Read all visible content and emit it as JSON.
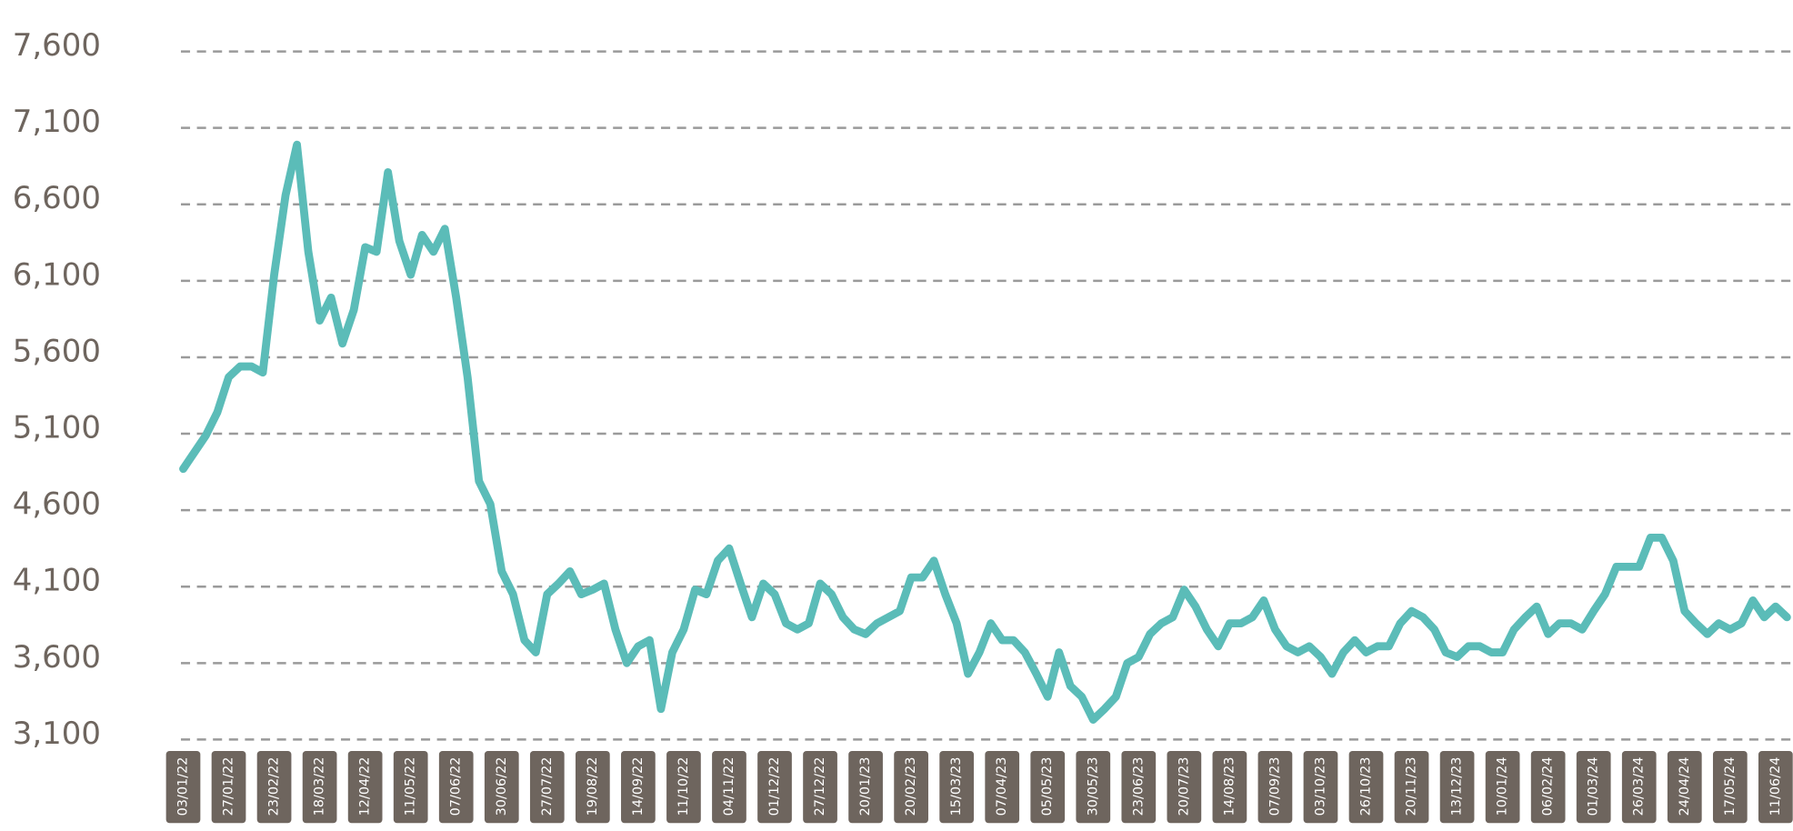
{
  "chart_data": {
    "type": "line",
    "categories": [
      "03/01/22",
      null,
      null,
      null,
      "27/01/22",
      null,
      null,
      null,
      "23/02/22",
      null,
      null,
      null,
      "18/03/22",
      null,
      null,
      null,
      "12/04/22",
      null,
      null,
      null,
      "11/05/22",
      null,
      null,
      null,
      "07/06/22",
      null,
      null,
      null,
      "30/06/22",
      null,
      null,
      null,
      "27/07/22",
      null,
      null,
      null,
      "19/08/22",
      null,
      null,
      null,
      "14/09/22",
      null,
      null,
      null,
      "11/10/22",
      null,
      null,
      null,
      "04/11/22",
      null,
      null,
      null,
      "01/12/22",
      null,
      null,
      null,
      "27/12/22",
      null,
      null,
      null,
      "20/01/23",
      null,
      null,
      null,
      "20/02/23",
      null,
      null,
      null,
      "15/03/23",
      null,
      null,
      null,
      "07/04/23",
      null,
      null,
      null,
      "05/05/23",
      null,
      null,
      null,
      "30/05/23",
      null,
      null,
      null,
      "23/06/23",
      null,
      null,
      null,
      "20/07/23",
      null,
      null,
      null,
      "14/08/23",
      null,
      null,
      null,
      "07/09/23",
      null,
      null,
      null,
      "03/10/23",
      null,
      null,
      null,
      "26/10/23",
      null,
      null,
      null,
      "20/11/23",
      null,
      null,
      null,
      "13/12/23",
      null,
      null,
      null,
      "10/01/24",
      null,
      null,
      null,
      "06/02/24",
      null,
      null,
      null,
      "01/03/24",
      null,
      null,
      null,
      "26/03/24",
      null,
      null,
      null,
      "24/04/24",
      null,
      null,
      null,
      "17/05/24",
      null,
      null,
      null,
      "11/06/24",
      null
    ],
    "series": [
      {
        "color": "#5bbcb8",
        "values": [
          4870,
          4980,
          5090,
          5240,
          5470,
          5540,
          5540,
          5500,
          6140,
          6660,
          6990,
          6290,
          5840,
          5990,
          5690,
          5910,
          6320,
          6290,
          6810,
          6360,
          6140,
          6400,
          6290,
          6440,
          5990,
          5470,
          4790,
          4640,
          4200,
          4050,
          3750,
          3670,
          4050,
          4120,
          4200,
          4050,
          4080,
          4120,
          3820,
          3600,
          3710,
          3750,
          3300,
          3670,
          3820,
          4080,
          4050,
          4270,
          4350,
          4120,
          3900,
          4120,
          4050,
          3860,
          3820,
          3860,
          4120,
          4050,
          3900,
          3820,
          3790,
          3860,
          3900,
          3940,
          4160,
          4160,
          4270,
          4050,
          3860,
          3530,
          3670,
          3860,
          3750,
          3750,
          3670,
          3530,
          3380,
          3670,
          3450,
          3380,
          3230,
          3300,
          3380,
          3600,
          3640,
          3790,
          3860,
          3900,
          4080,
          3970,
          3820,
          3710,
          3860,
          3860,
          3900,
          4010,
          3820,
          3710,
          3670,
          3710,
          3640,
          3530,
          3670,
          3750,
          3670,
          3710,
          3710,
          3860,
          3940,
          3900,
          3820,
          3670,
          3640,
          3710,
          3710,
          3670,
          3670,
          3820,
          3900,
          3970,
          3790,
          3860,
          3860,
          3820,
          3940,
          4050,
          4230,
          4230,
          4230,
          4420,
          4420,
          4270,
          3940,
          3860,
          3790,
          3860,
          3820,
          3860,
          4010,
          3900,
          3970,
          3900
        ]
      }
    ],
    "ylim": [
      3100,
      7600
    ],
    "yticks": [
      {
        "value": 3100,
        "label": "3,100"
      },
      {
        "value": 3600,
        "label": "3,600"
      },
      {
        "value": 4100,
        "label": "4,100"
      },
      {
        "value": 4600,
        "label": "4,600"
      },
      {
        "value": 5100,
        "label": "5,100"
      },
      {
        "value": 5600,
        "label": "5,600"
      },
      {
        "value": 6100,
        "label": "6,100"
      },
      {
        "value": 6600,
        "label": "6,600"
      },
      {
        "value": 7100,
        "label": "7,100"
      },
      {
        "value": 7600,
        "label": "7,600"
      }
    ],
    "grid": true
  }
}
